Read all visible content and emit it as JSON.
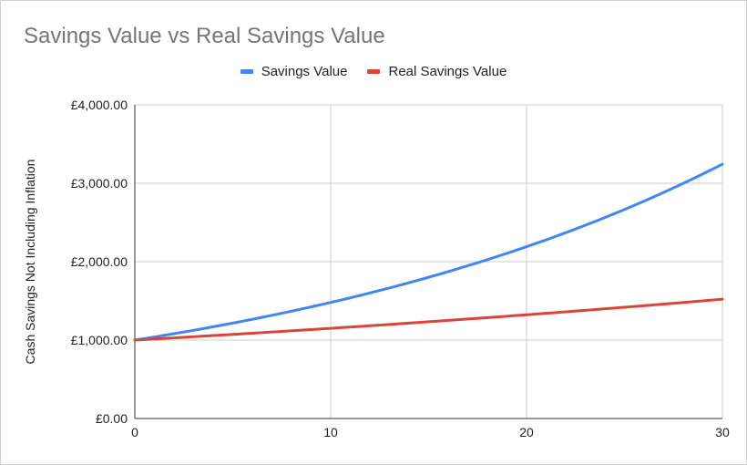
{
  "chart_data": {
    "type": "line",
    "title": "Savings Value vs Real Savings Value",
    "xlabel": "",
    "ylabel": "Cash Savings Not Including Inflation",
    "xlim": [
      0,
      30
    ],
    "ylim": [
      0,
      4000
    ],
    "x_ticks": [
      0,
      10,
      20,
      30
    ],
    "x_tick_labels": [
      "0",
      "10",
      "20",
      "30"
    ],
    "y_ticks": [
      0,
      1000,
      2000,
      3000,
      4000
    ],
    "y_tick_labels": [
      "£0.00",
      "£1,000.00",
      "£2,000.00",
      "£3,000.00",
      "£4,000.00"
    ],
    "grid": true,
    "legend": "top-center",
    "series": [
      {
        "name": "Savings Value",
        "color": "#4285f4",
        "x": [
          0,
          5,
          10,
          15,
          20,
          25,
          30
        ],
        "values": [
          1000,
          1216.65,
          1480.24,
          1800.94,
          2191.12,
          2665.84,
          3243.4
        ]
      },
      {
        "name": "Real Savings Value",
        "color": "#db4437",
        "x": [
          0,
          5,
          10,
          15,
          20,
          25,
          30
        ],
        "values": [
          1000,
          1072.46,
          1150.18,
          1233.51,
          1322.89,
          1418.75,
          1521.56
        ]
      }
    ]
  }
}
